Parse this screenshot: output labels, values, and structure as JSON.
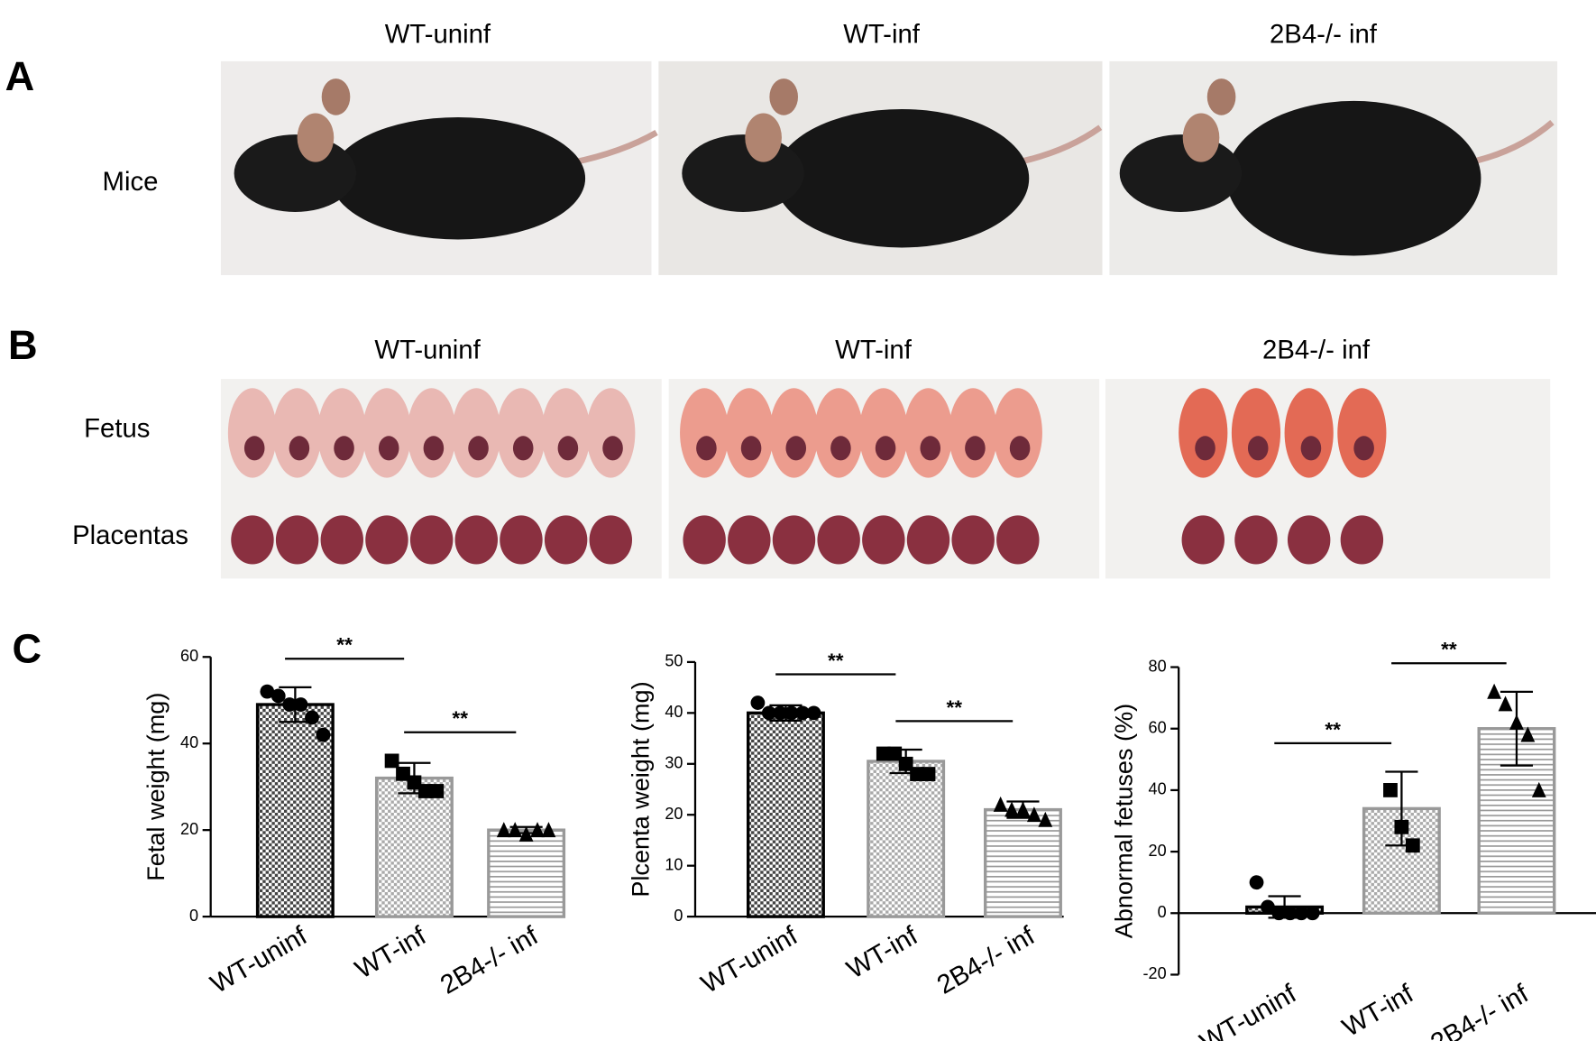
{
  "panels": {
    "A": {
      "label": "A",
      "headers": [
        "WT-uninf",
        "WT-inf",
        "2B4-/- inf"
      ],
      "row_label": "Mice"
    },
    "B": {
      "label": "B",
      "headers": [
        "WT-uninf",
        "WT-inf",
        "2B4-/- inf"
      ],
      "row_labels": [
        "Fetus",
        "Placentas"
      ]
    },
    "C": {
      "label": "C"
    }
  },
  "chart_data": [
    {
      "type": "bar",
      "ylabel": "Fetal weight (mg)",
      "categories": [
        "WT-uninf",
        "WT-inf",
        "2B4-/- inf"
      ],
      "values": [
        49,
        32,
        20
      ],
      "errors": [
        4,
        3.5,
        0.7
      ],
      "points": [
        [
          52,
          51,
          49,
          49,
          46,
          42
        ],
        [
          36,
          33,
          31,
          29,
          29
        ],
        [
          20,
          20,
          19,
          20,
          20
        ]
      ],
      "markers": [
        "circle",
        "square",
        "triangle"
      ],
      "colors": [
        "#000000",
        "#999999",
        "#999999"
      ],
      "patterns": [
        "dark-checker",
        "light-checker",
        "horizontal"
      ],
      "ylim": [
        0,
        60
      ],
      "yticks": [
        0,
        20,
        40,
        60
      ],
      "annotations": [
        "**",
        "**"
      ]
    },
    {
      "type": "bar",
      "ylabel": "Plcenta weight (mg)",
      "categories": [
        "WT-uninf",
        "WT-inf",
        "2B4-/- inf"
      ],
      "values": [
        40,
        30.5,
        21
      ],
      "errors": [
        1.5,
        2.3,
        1.6
      ],
      "points": [
        [
          42,
          40,
          40,
          40,
          40,
          40
        ],
        [
          32,
          32,
          30,
          28,
          28
        ],
        [
          22,
          21,
          21,
          20,
          19
        ]
      ],
      "markers": [
        "circle",
        "square",
        "triangle"
      ],
      "colors": [
        "#000000",
        "#999999",
        "#999999"
      ],
      "patterns": [
        "dark-checker",
        "light-checker",
        "horizontal"
      ],
      "ylim": [
        0,
        50
      ],
      "yticks": [
        0,
        10,
        20,
        30,
        40,
        50
      ],
      "annotations": [
        "**",
        "**"
      ]
    },
    {
      "type": "bar",
      "ylabel": "Abnormal fetuses (%)",
      "categories": [
        "WT-uninf",
        "WT-inf",
        "2B4-/- inf"
      ],
      "values": [
        2,
        34,
        60
      ],
      "errors": [
        3.5,
        12,
        12
      ],
      "points": [
        [
          10,
          2,
          0,
          0,
          0,
          0
        ],
        [
          40,
          28,
          22
        ],
        [
          72,
          68,
          62,
          58,
          40
        ]
      ],
      "markers": [
        "circle",
        "square",
        "triangle"
      ],
      "colors": [
        "#000000",
        "#999999",
        "#999999"
      ],
      "patterns": [
        "dark-checker",
        "light-checker",
        "horizontal"
      ],
      "ylim": [
        -20,
        80
      ],
      "yticks": [
        -20,
        0,
        20,
        40,
        60,
        80
      ],
      "annotations": [
        "**",
        "**"
      ]
    }
  ]
}
